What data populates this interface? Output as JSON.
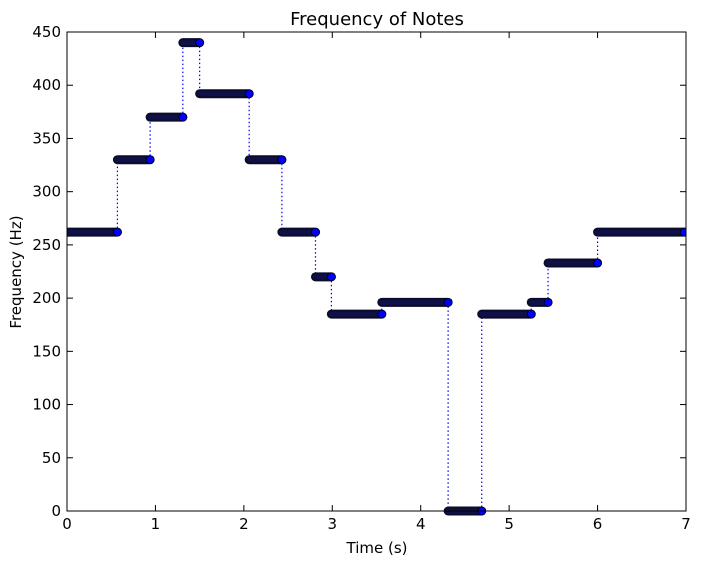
{
  "chart_data": {
    "type": "line",
    "title": "Frequency of Notes",
    "xlabel": "Time (s)",
    "ylabel": "Frequency (Hz)",
    "xlim": [
      0,
      7
    ],
    "ylim": [
      0,
      450
    ],
    "xticks": [
      "0",
      "1",
      "2",
      "3",
      "4",
      "5",
      "6",
      "7"
    ],
    "yticks": [
      "0",
      "50",
      "100",
      "150",
      "200",
      "250",
      "300",
      "350",
      "400",
      "450"
    ],
    "grid": false,
    "marker_color": "#0000ff",
    "series": [
      {
        "segments": [
          {
            "x_start": 0.0,
            "x_end": 0.57,
            "frequency": 262
          },
          {
            "x_start": 0.57,
            "x_end": 0.94,
            "frequency": 330
          },
          {
            "x_start": 0.94,
            "x_end": 1.31,
            "frequency": 370
          },
          {
            "x_start": 1.31,
            "x_end": 1.5,
            "frequency": 440
          },
          {
            "x_start": 1.5,
            "x_end": 2.06,
            "frequency": 392
          },
          {
            "x_start": 2.06,
            "x_end": 2.43,
            "frequency": 330
          },
          {
            "x_start": 2.43,
            "x_end": 2.81,
            "frequency": 262
          },
          {
            "x_start": 2.81,
            "x_end": 2.99,
            "frequency": 220
          },
          {
            "x_start": 2.99,
            "x_end": 3.56,
            "frequency": 185
          },
          {
            "x_start": 3.56,
            "x_end": 4.31,
            "frequency": 196
          },
          {
            "x_start": 4.31,
            "x_end": 4.69,
            "frequency": 0
          },
          {
            "x_start": 4.69,
            "x_end": 5.25,
            "frequency": 185
          },
          {
            "x_start": 5.25,
            "x_end": 5.44,
            "frequency": 196
          },
          {
            "x_start": 5.44,
            "x_end": 6.0,
            "frequency": 233
          },
          {
            "x_start": 6.0,
            "x_end": 6.98,
            "frequency": 262
          }
        ]
      }
    ]
  }
}
